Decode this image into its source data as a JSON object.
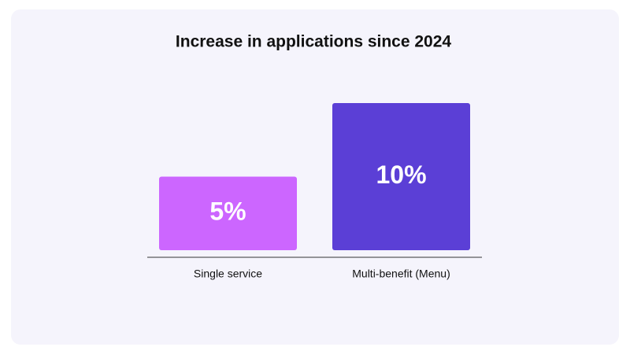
{
  "chart_data": {
    "type": "bar",
    "title": "Increase in applications since 2024",
    "categories": [
      "Single service",
      "Multi-benefit (Menu)"
    ],
    "values": [
      5,
      10
    ],
    "value_labels": [
      "5%",
      "10%"
    ],
    "colors": [
      "#cc66ff",
      "#5b3fd6"
    ]
  }
}
